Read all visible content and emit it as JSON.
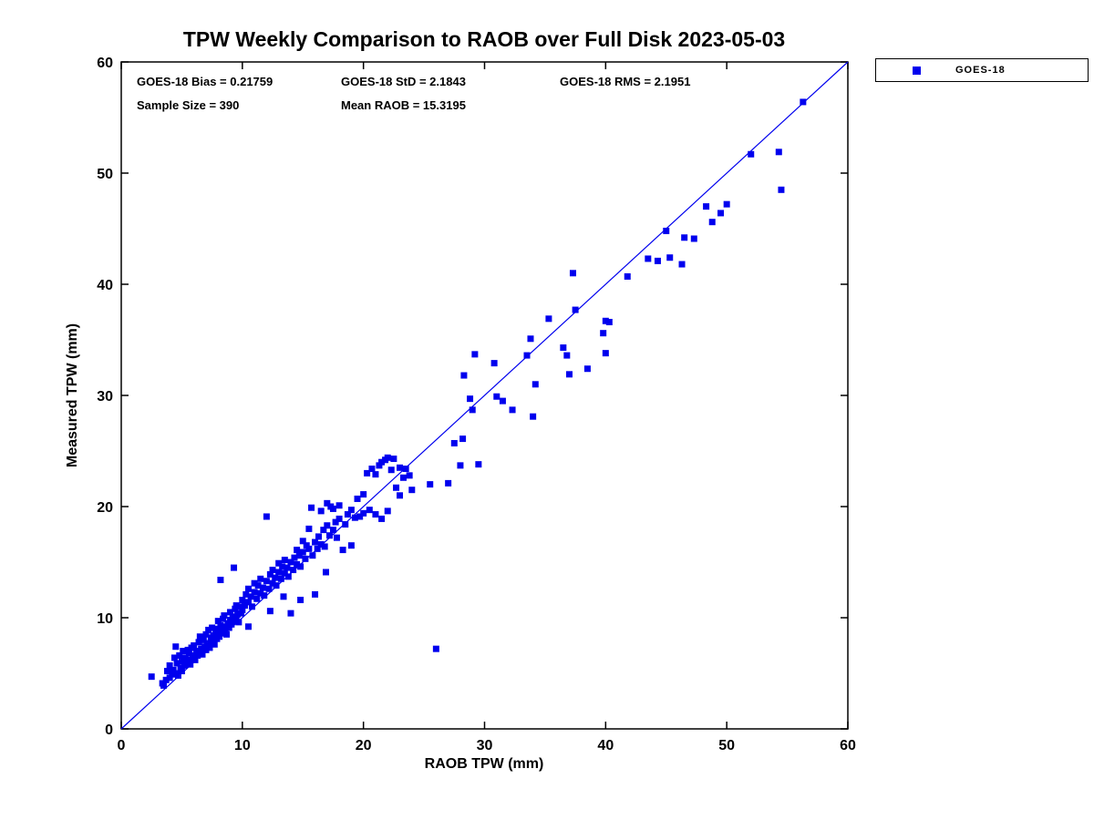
{
  "title": "TPW Weekly Comparison to RAOB over Full Disk 2023-05-03",
  "annotations": {
    "bias": "GOES-18 Bias = 0.21759",
    "std": "GOES-18 StD = 2.1843",
    "rms": "GOES-18 RMS = 2.1951",
    "sample": "Sample Size = 390",
    "mean_raob": "Mean RAOB = 15.3195"
  },
  "legend": {
    "label": "GOES-18",
    "marker_color": "#0000ee"
  },
  "chart_data": {
    "type": "scatter",
    "title": "TPW Weekly Comparison to RAOB over Full Disk 2023-05-03",
    "xlabel": "RAOB TPW (mm)",
    "ylabel": "Measured TPW (mm)",
    "xlim": [
      0,
      60
    ],
    "ylim": [
      0,
      60
    ],
    "xticks": [
      0,
      10,
      20,
      30,
      40,
      50,
      60
    ],
    "yticks": [
      0,
      10,
      20,
      30,
      40,
      50,
      60
    ],
    "grid": false,
    "legend_position": "outside-top-right",
    "stats": {
      "bias": 0.21759,
      "std": 2.1843,
      "rms": 2.1951,
      "sample_size": 390,
      "mean_raob": 15.3195
    },
    "reference_line": {
      "from": [
        0,
        0
      ],
      "to": [
        60,
        60
      ],
      "color": "#0000ee"
    },
    "series": [
      {
        "name": "GOES-18",
        "marker": "square",
        "color": "#0000ee",
        "points": [
          [
            2.5,
            4.7
          ],
          [
            3.4,
            4.1
          ],
          [
            3.5,
            3.9
          ],
          [
            3.7,
            4.4
          ],
          [
            3.8,
            5.2
          ],
          [
            4,
            4.6
          ],
          [
            4,
            5.7
          ],
          [
            4.2,
            4.9
          ],
          [
            4.3,
            5.3
          ],
          [
            4.4,
            6.4
          ],
          [
            4.5,
            5
          ],
          [
            4.5,
            7.4
          ],
          [
            4.6,
            5.9
          ],
          [
            4.7,
            4.8
          ],
          [
            4.8,
            6.6
          ],
          [
            4.9,
            5.5
          ],
          [
            5,
            5.2
          ],
          [
            5,
            6.1
          ],
          [
            5.1,
            7
          ],
          [
            5.2,
            5.7
          ],
          [
            5.3,
            6.4
          ],
          [
            5.4,
            5.9
          ],
          [
            5.5,
            7.1
          ],
          [
            5.5,
            6.2
          ],
          [
            5.6,
            6.8
          ],
          [
            5.7,
            5.8
          ],
          [
            5.8,
            7.3
          ],
          [
            5.9,
            6.3
          ],
          [
            6,
            6.6
          ],
          [
            6,
            7.5
          ],
          [
            6.1,
            6.2
          ],
          [
            6.2,
            7
          ],
          [
            6.3,
            6.6
          ],
          [
            6.4,
            7.8
          ],
          [
            6.5,
            6.9
          ],
          [
            6.5,
            8.3
          ],
          [
            6.6,
            7.2
          ],
          [
            6.7,
            6.7
          ],
          [
            6.8,
            8
          ],
          [
            6.9,
            7.4
          ],
          [
            7,
            7.1
          ],
          [
            7,
            8.5
          ],
          [
            7.1,
            7.7
          ],
          [
            7.2,
            8.9
          ],
          [
            7.3,
            7.3
          ],
          [
            7.4,
            8.2
          ],
          [
            7.5,
            7.8
          ],
          [
            7.5,
            9.1
          ],
          [
            7.6,
            8.4
          ],
          [
            7.7,
            7.6
          ],
          [
            7.8,
            8.7
          ],
          [
            7.9,
            8.1
          ],
          [
            8,
            9
          ],
          [
            8,
            9.7
          ],
          [
            8.1,
            8.3
          ],
          [
            8.2,
            9.3
          ],
          [
            8.2,
            13.4
          ],
          [
            8.3,
            8.6
          ],
          [
            8.4,
            9.9
          ],
          [
            8.5,
            8.9
          ],
          [
            8.5,
            10.2
          ],
          [
            8.6,
            9.2
          ],
          [
            8.7,
            8.5
          ],
          [
            8.8,
            9.5
          ],
          [
            8.9,
            9.1
          ],
          [
            9,
            9.8
          ],
          [
            9,
            10.5
          ],
          [
            9.1,
            9.4
          ],
          [
            9.2,
            10.1
          ],
          [
            9.3,
            9.7
          ],
          [
            9.3,
            14.5
          ],
          [
            9.4,
            10.8
          ],
          [
            9.5,
            10
          ],
          [
            9.5,
            11.1
          ],
          [
            9.6,
            10.3
          ],
          [
            9.7,
            9.6
          ],
          [
            9.8,
            11
          ],
          [
            9.9,
            10.4
          ],
          [
            10,
            10.7
          ],
          [
            10,
            11.6
          ],
          [
            10.2,
            11.1
          ],
          [
            10.3,
            12.1
          ],
          [
            10.5,
            11.4
          ],
          [
            10.5,
            12.6
          ],
          [
            10.5,
            9.2
          ],
          [
            10.7,
            11.9
          ],
          [
            10.8,
            11
          ],
          [
            11,
            12.3
          ],
          [
            11,
            13.1
          ],
          [
            11.2,
            11.7
          ],
          [
            11.3,
            12.9
          ],
          [
            11.5,
            12.2
          ],
          [
            11.5,
            13.5
          ],
          [
            11.7,
            12.7
          ],
          [
            11.8,
            12
          ],
          [
            12,
            13.3
          ],
          [
            12,
            19.1
          ],
          [
            12.2,
            12.6
          ],
          [
            12.3,
            13.9
          ],
          [
            12.3,
            10.6
          ],
          [
            12.5,
            13.1
          ],
          [
            12.5,
            14.3
          ],
          [
            12.7,
            13.6
          ],
          [
            12.8,
            12.9
          ],
          [
            13,
            14.1
          ],
          [
            13,
            14.9
          ],
          [
            13.2,
            13.5
          ],
          [
            13.3,
            14.6
          ],
          [
            13.4,
            11.9
          ],
          [
            13.5,
            14
          ],
          [
            13.5,
            15.2
          ],
          [
            13.7,
            14.5
          ],
          [
            13.8,
            13.7
          ],
          [
            14,
            15
          ],
          [
            14,
            10.4
          ],
          [
            14.2,
            14.3
          ],
          [
            14.3,
            15.4
          ],
          [
            14.5,
            14.8
          ],
          [
            14.5,
            16.1
          ],
          [
            14.7,
            15.6
          ],
          [
            14.8,
            14.6
          ],
          [
            14.8,
            11.6
          ],
          [
            15,
            15.9
          ],
          [
            15,
            16.9
          ],
          [
            15.2,
            15.3
          ],
          [
            15.3,
            16.5
          ],
          [
            15.5,
            18
          ],
          [
            15.5,
            16.2
          ],
          [
            15.7,
            19.9
          ],
          [
            15.8,
            15.6
          ],
          [
            16,
            16.8
          ],
          [
            16,
            12.1
          ],
          [
            16.2,
            16.2
          ],
          [
            16.3,
            17.3
          ],
          [
            16.5,
            16.6
          ],
          [
            16.5,
            19.6
          ],
          [
            16.7,
            17.9
          ],
          [
            16.8,
            16.4
          ],
          [
            16.9,
            14.1
          ],
          [
            17,
            18.3
          ],
          [
            17,
            20.3
          ],
          [
            17.2,
            17.4
          ],
          [
            17.3,
            20
          ],
          [
            17.5,
            17.9
          ],
          [
            17.5,
            19.8
          ],
          [
            17.7,
            18.6
          ],
          [
            17.8,
            17.2
          ],
          [
            18,
            18.9
          ],
          [
            18,
            20.1
          ],
          [
            18.3,
            16.1
          ],
          [
            18.5,
            18.4
          ],
          [
            18.7,
            19.3
          ],
          [
            19,
            19.7
          ],
          [
            19,
            16.5
          ],
          [
            19.3,
            19
          ],
          [
            19.5,
            20.7
          ],
          [
            19.7,
            19.1
          ],
          [
            20,
            19.4
          ],
          [
            20,
            21.1
          ],
          [
            20.3,
            23
          ],
          [
            20.5,
            19.7
          ],
          [
            20.7,
            23.4
          ],
          [
            21,
            22.9
          ],
          [
            21,
            19.3
          ],
          [
            21.3,
            23.7
          ],
          [
            21.5,
            24
          ],
          [
            21.5,
            18.9
          ],
          [
            21.8,
            24.2
          ],
          [
            22,
            24.4
          ],
          [
            22,
            19.6
          ],
          [
            22.3,
            23.3
          ],
          [
            22.5,
            24.3
          ],
          [
            22.7,
            21.7
          ],
          [
            23,
            23.5
          ],
          [
            23,
            21
          ],
          [
            23.3,
            22.6
          ],
          [
            23.5,
            23.4
          ],
          [
            23.8,
            22.8
          ],
          [
            24,
            21.5
          ],
          [
            25.5,
            22
          ],
          [
            26,
            7.2
          ],
          [
            27,
            22.1
          ],
          [
            27.5,
            25.7
          ],
          [
            28,
            23.7
          ],
          [
            28.2,
            26.1
          ],
          [
            28.3,
            31.8
          ],
          [
            28.8,
            29.7
          ],
          [
            29,
            28.7
          ],
          [
            29.2,
            33.7
          ],
          [
            29.5,
            23.8
          ],
          [
            30.8,
            32.9
          ],
          [
            31,
            29.9
          ],
          [
            31.5,
            29.5
          ],
          [
            32.3,
            28.7
          ],
          [
            33.5,
            33.6
          ],
          [
            33.8,
            35.1
          ],
          [
            34,
            28.1
          ],
          [
            34.2,
            31
          ],
          [
            35.3,
            36.9
          ],
          [
            36.5,
            34.3
          ],
          [
            36.8,
            33.6
          ],
          [
            37,
            31.9
          ],
          [
            37.3,
            41
          ],
          [
            37.5,
            37.7
          ],
          [
            38.5,
            32.4
          ],
          [
            39.8,
            35.6
          ],
          [
            40,
            33.8
          ],
          [
            40,
            36.7
          ],
          [
            40.3,
            36.6
          ],
          [
            41.8,
            40.7
          ],
          [
            43.5,
            42.3
          ],
          [
            44.3,
            42.1
          ],
          [
            45,
            44.8
          ],
          [
            45.3,
            42.4
          ],
          [
            46.3,
            41.8
          ],
          [
            46.5,
            44.2
          ],
          [
            47.3,
            44.1
          ],
          [
            48.3,
            47
          ],
          [
            48.8,
            45.6
          ],
          [
            49.5,
            46.4
          ],
          [
            50,
            47.2
          ],
          [
            52,
            51.7
          ],
          [
            54.3,
            51.9
          ],
          [
            54.5,
            48.5
          ],
          [
            56.3,
            56.4
          ]
        ]
      }
    ]
  }
}
